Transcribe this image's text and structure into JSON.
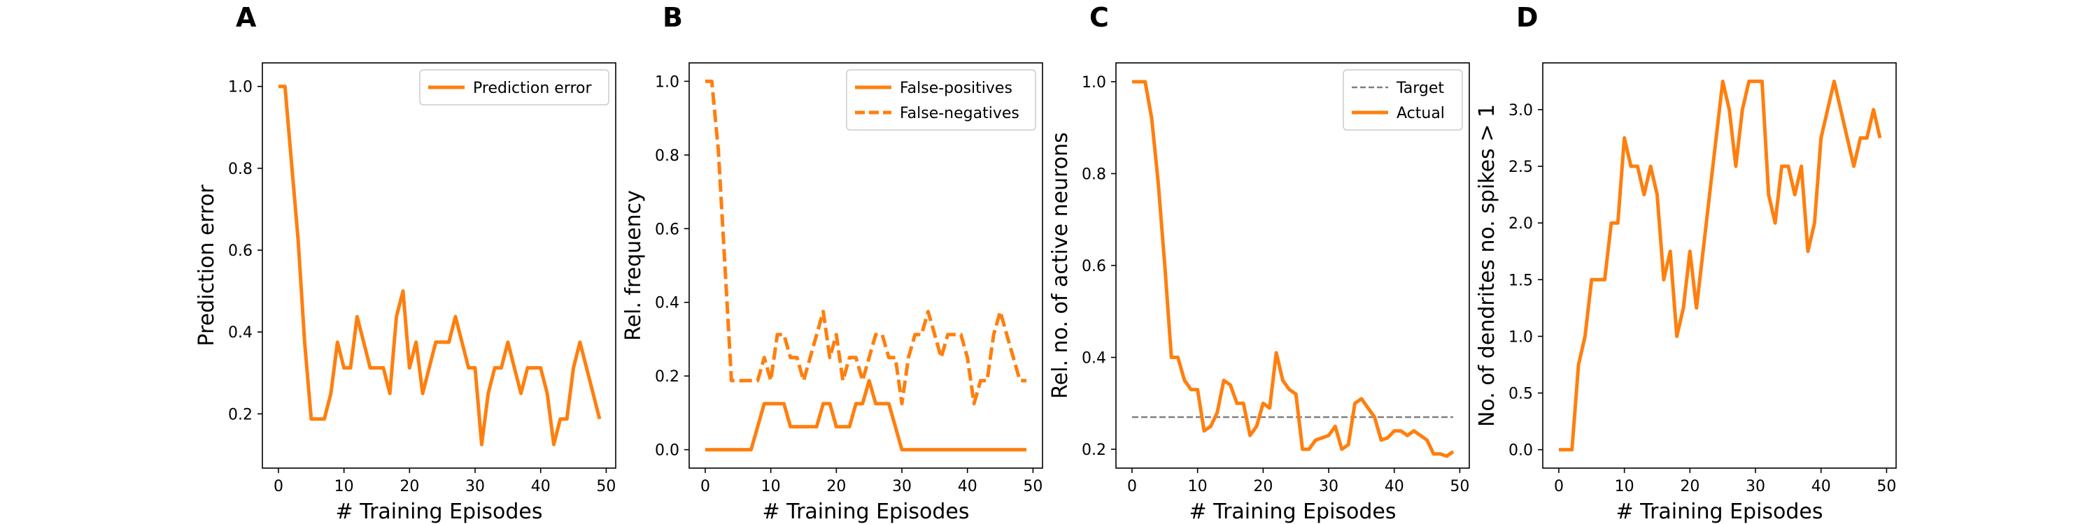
{
  "colors": {
    "series": "#ff7f0e",
    "target": "#808080",
    "axis": "#000000",
    "legend_border": "#cccccc"
  },
  "chart_data": [
    {
      "panel": "A",
      "type": "line",
      "xlabel": "# Training Episodes",
      "ylabel": "Prediction error",
      "xlim": [
        -2.45,
        51.45
      ],
      "ylim": [
        0.0675,
        1.0575
      ],
      "xticks": [
        0,
        10,
        20,
        30,
        40,
        50
      ],
      "yticks": [
        0.2,
        0.4,
        0.6,
        0.8,
        1.0
      ],
      "ytick_labels": [
        "0.2",
        "0.4",
        "0.6",
        "0.8",
        "1.0"
      ],
      "legend_position": "top-right",
      "series": [
        {
          "name": "Prediction error",
          "style": "solid",
          "x": [
            0,
            1,
            2,
            3,
            4,
            5,
            6,
            7,
            8,
            9,
            10,
            11,
            12,
            13,
            14,
            15,
            16,
            17,
            18,
            19,
            20,
            21,
            22,
            23,
            24,
            25,
            26,
            27,
            28,
            29,
            30,
            31,
            32,
            33,
            34,
            35,
            36,
            37,
            38,
            39,
            40,
            41,
            42,
            43,
            44,
            45,
            46,
            47,
            48,
            49
          ],
          "y": [
            1.0,
            1.0,
            0.8125,
            0.625,
            0.375,
            0.1875,
            0.1875,
            0.1875,
            0.25,
            0.375,
            0.3125,
            0.3125,
            0.4375,
            0.375,
            0.3125,
            0.3125,
            0.3125,
            0.25,
            0.4375,
            0.5,
            0.3125,
            0.375,
            0.25,
            0.3125,
            0.375,
            0.375,
            0.375,
            0.4375,
            0.375,
            0.3125,
            0.3125,
            0.125,
            0.25,
            0.3125,
            0.3125,
            0.375,
            0.3125,
            0.25,
            0.3125,
            0.3125,
            0.3125,
            0.25,
            0.125,
            0.1875,
            0.1875,
            0.3125,
            0.375,
            0.3125,
            0.25,
            0.1875
          ]
        }
      ]
    },
    {
      "panel": "B",
      "type": "line",
      "xlabel": "# Training Episodes",
      "ylabel": "Rel. frequency",
      "xlim": [
        -2.45,
        51.45
      ],
      "ylim": [
        -0.05,
        1.05
      ],
      "xticks": [
        0,
        10,
        20,
        30,
        40,
        50
      ],
      "yticks": [
        0.0,
        0.2,
        0.4,
        0.6,
        0.8,
        1.0
      ],
      "ytick_labels": [
        "0.0",
        "0.2",
        "0.4",
        "0.6",
        "0.8",
        "1.0"
      ],
      "legend_position": "top-right",
      "series": [
        {
          "name": "False-positives",
          "style": "solid",
          "x": [
            0,
            1,
            2,
            3,
            4,
            5,
            6,
            7,
            8,
            9,
            10,
            11,
            12,
            13,
            14,
            15,
            16,
            17,
            18,
            19,
            20,
            21,
            22,
            23,
            24,
            25,
            26,
            27,
            28,
            29,
            30,
            31,
            32,
            33,
            34,
            35,
            36,
            37,
            38,
            39,
            40,
            41,
            42,
            43,
            44,
            45,
            46,
            47,
            48,
            49
          ],
          "y": [
            0,
            0,
            0,
            0,
            0,
            0,
            0,
            0,
            0.0625,
            0.125,
            0.125,
            0.125,
            0.125,
            0.0625,
            0.0625,
            0.0625,
            0.0625,
            0.0625,
            0.125,
            0.125,
            0.0625,
            0.0625,
            0.0625,
            0.125,
            0.125,
            0.1875,
            0.125,
            0.125,
            0.125,
            0.0625,
            0,
            0,
            0,
            0,
            0,
            0,
            0,
            0,
            0,
            0,
            0,
            0,
            0,
            0,
            0,
            0,
            0,
            0,
            0,
            0
          ]
        },
        {
          "name": "False-negatives",
          "style": "dashed",
          "x": [
            0,
            1,
            2,
            3,
            4,
            5,
            6,
            7,
            8,
            9,
            10,
            11,
            12,
            13,
            14,
            15,
            16,
            17,
            18,
            19,
            20,
            21,
            22,
            23,
            24,
            25,
            26,
            27,
            28,
            29,
            30,
            31,
            32,
            33,
            34,
            35,
            36,
            37,
            38,
            39,
            40,
            41,
            42,
            43,
            44,
            45,
            46,
            47,
            48,
            49
          ],
          "y": [
            1.0,
            1.0,
            0.8125,
            0.5,
            0.1875,
            0.1875,
            0.1875,
            0.1875,
            0.1875,
            0.25,
            0.1875,
            0.3125,
            0.3125,
            0.25,
            0.25,
            0.1875,
            0.25,
            0.3125,
            0.375,
            0.25,
            0.3125,
            0.1875,
            0.25,
            0.25,
            0.1875,
            0.25,
            0.3125,
            0.3125,
            0.25,
            0.25,
            0.125,
            0.25,
            0.3125,
            0.3125,
            0.375,
            0.3125,
            0.25,
            0.3125,
            0.3125,
            0.3125,
            0.25,
            0.125,
            0.1875,
            0.1875,
            0.3125,
            0.375,
            0.3125,
            0.25,
            0.1875,
            0.1875
          ]
        }
      ]
    },
    {
      "panel": "C",
      "type": "line",
      "xlabel": "# Training Episodes",
      "ylabel": "Rel. no. of active neurons",
      "xlim": [
        -2.45,
        51.45
      ],
      "ylim": [
        0.159,
        1.041
      ],
      "xticks": [
        0,
        10,
        20,
        30,
        40,
        50
      ],
      "yticks": [
        0.2,
        0.4,
        0.6,
        0.8,
        1.0
      ],
      "ytick_labels": [
        "0.2",
        "0.4",
        "0.6",
        "0.8",
        "1.0"
      ],
      "legend_position": "top-right",
      "series": [
        {
          "name": "Target",
          "style": "dashed-thin",
          "x": [
            0,
            49
          ],
          "y": [
            0.27,
            0.27
          ]
        },
        {
          "name": "Actual",
          "style": "solid",
          "x": [
            0,
            1,
            2,
            3,
            4,
            5,
            6,
            7,
            8,
            9,
            10,
            11,
            12,
            13,
            14,
            15,
            16,
            17,
            18,
            19,
            20,
            21,
            22,
            23,
            24,
            25,
            26,
            27,
            28,
            29,
            30,
            31,
            32,
            33,
            34,
            35,
            36,
            37,
            38,
            39,
            40,
            41,
            42,
            43,
            44,
            45,
            46,
            47,
            48,
            49
          ],
          "y": [
            1.0,
            1.0,
            1.0,
            0.92,
            0.78,
            0.6,
            0.4,
            0.4,
            0.35,
            0.33,
            0.33,
            0.24,
            0.25,
            0.28,
            0.35,
            0.34,
            0.3,
            0.3,
            0.23,
            0.25,
            0.3,
            0.29,
            0.41,
            0.35,
            0.33,
            0.32,
            0.2,
            0.2,
            0.22,
            0.225,
            0.23,
            0.25,
            0.2,
            0.21,
            0.3,
            0.31,
            0.29,
            0.27,
            0.22,
            0.225,
            0.24,
            0.24,
            0.23,
            0.24,
            0.23,
            0.22,
            0.19,
            0.19,
            0.185,
            0.195
          ]
        }
      ]
    },
    {
      "panel": "D",
      "type": "line",
      "xlabel": "# Training Episodes",
      "ylabel": "No. of dendrites no. spikes > 1",
      "xlim": [
        -2.45,
        51.45
      ],
      "ylim": [
        -0.1625,
        3.4125
      ],
      "xticks": [
        0,
        10,
        20,
        30,
        40,
        50
      ],
      "yticks": [
        0.0,
        0.5,
        1.0,
        1.5,
        2.0,
        2.5,
        3.0
      ],
      "ytick_labels": [
        "0.0",
        "0.5",
        "1.0",
        "1.5",
        "2.0",
        "2.5",
        "3.0"
      ],
      "legend_position": "none",
      "series": [
        {
          "name": "",
          "style": "solid",
          "x": [
            0,
            1,
            2,
            3,
            4,
            5,
            6,
            7,
            8,
            9,
            10,
            11,
            12,
            13,
            14,
            15,
            16,
            17,
            18,
            19,
            20,
            21,
            22,
            23,
            24,
            25,
            26,
            27,
            28,
            29,
            30,
            31,
            32,
            33,
            34,
            35,
            36,
            37,
            38,
            39,
            40,
            41,
            42,
            43,
            44,
            45,
            46,
            47,
            48,
            49
          ],
          "y": [
            0,
            0,
            0,
            0.75,
            1.0,
            1.5,
            1.5,
            1.5,
            2.0,
            2.0,
            2.75,
            2.5,
            2.5,
            2.25,
            2.5,
            2.25,
            1.5,
            1.75,
            1.0,
            1.25,
            1.75,
            1.25,
            1.75,
            2.25,
            2.75,
            3.25,
            3.0,
            2.5,
            3.0,
            3.25,
            3.25,
            3.25,
            2.25,
            2.0,
            2.5,
            2.5,
            2.25,
            2.5,
            1.75,
            2.0,
            2.75,
            3.0,
            3.25,
            3.0,
            2.75,
            2.5,
            2.75,
            2.75,
            3.0,
            2.75
          ]
        }
      ]
    }
  ]
}
